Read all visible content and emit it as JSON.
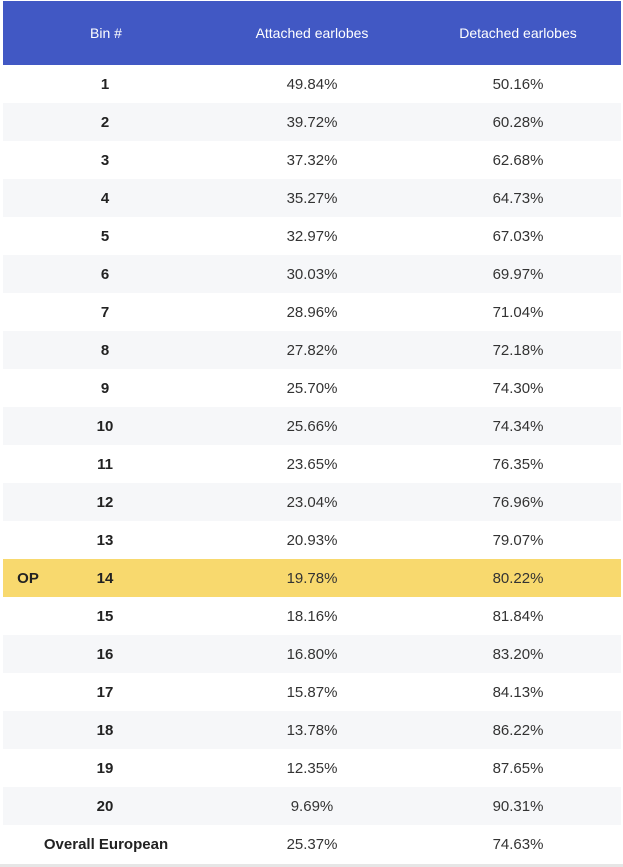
{
  "header": {
    "bin_label": "Bin #",
    "attached_label": "Attached earlobes",
    "detached_label": "Detached earlobes"
  },
  "rows": [
    {
      "op": "",
      "bin": "1",
      "attached": "49.84%",
      "detached": "50.16%"
    },
    {
      "op": "",
      "bin": "2",
      "attached": "39.72%",
      "detached": "60.28%"
    },
    {
      "op": "",
      "bin": "3",
      "attached": "37.32%",
      "detached": "62.68%"
    },
    {
      "op": "",
      "bin": "4",
      "attached": "35.27%",
      "detached": "64.73%"
    },
    {
      "op": "",
      "bin": "5",
      "attached": "32.97%",
      "detached": "67.03%"
    },
    {
      "op": "",
      "bin": "6",
      "attached": "30.03%",
      "detached": "69.97%"
    },
    {
      "op": "",
      "bin": "7",
      "attached": "28.96%",
      "detached": "71.04%"
    },
    {
      "op": "",
      "bin": "8",
      "attached": "27.82%",
      "detached": "72.18%"
    },
    {
      "op": "",
      "bin": "9",
      "attached": "25.70%",
      "detached": "74.30%"
    },
    {
      "op": "",
      "bin": "10",
      "attached": "25.66%",
      "detached": "74.34%"
    },
    {
      "op": "",
      "bin": "11",
      "attached": "23.65%",
      "detached": "76.35%"
    },
    {
      "op": "",
      "bin": "12",
      "attached": "23.04%",
      "detached": "76.96%"
    },
    {
      "op": "",
      "bin": "13",
      "attached": "20.93%",
      "detached": "79.07%"
    },
    {
      "op": "OP",
      "bin": "14",
      "attached": "19.78%",
      "detached": "80.22%"
    },
    {
      "op": "",
      "bin": "15",
      "attached": "18.16%",
      "detached": "81.84%"
    },
    {
      "op": "",
      "bin": "16",
      "attached": "16.80%",
      "detached": "83.20%"
    },
    {
      "op": "",
      "bin": "17",
      "attached": "15.87%",
      "detached": "84.13%"
    },
    {
      "op": "",
      "bin": "18",
      "attached": "13.78%",
      "detached": "86.22%"
    },
    {
      "op": "",
      "bin": "19",
      "attached": "12.35%",
      "detached": "87.65%"
    },
    {
      "op": "",
      "bin": "20",
      "attached": "9.69%",
      "detached": "90.31%"
    }
  ],
  "overall": {
    "label": "Overall European",
    "attached": "25.37%",
    "detached": "74.63%"
  },
  "colors": {
    "header_bg": "#4158c4",
    "highlight_bg": "#f8d96e",
    "alt_row_bg": "#f6f7f9"
  }
}
